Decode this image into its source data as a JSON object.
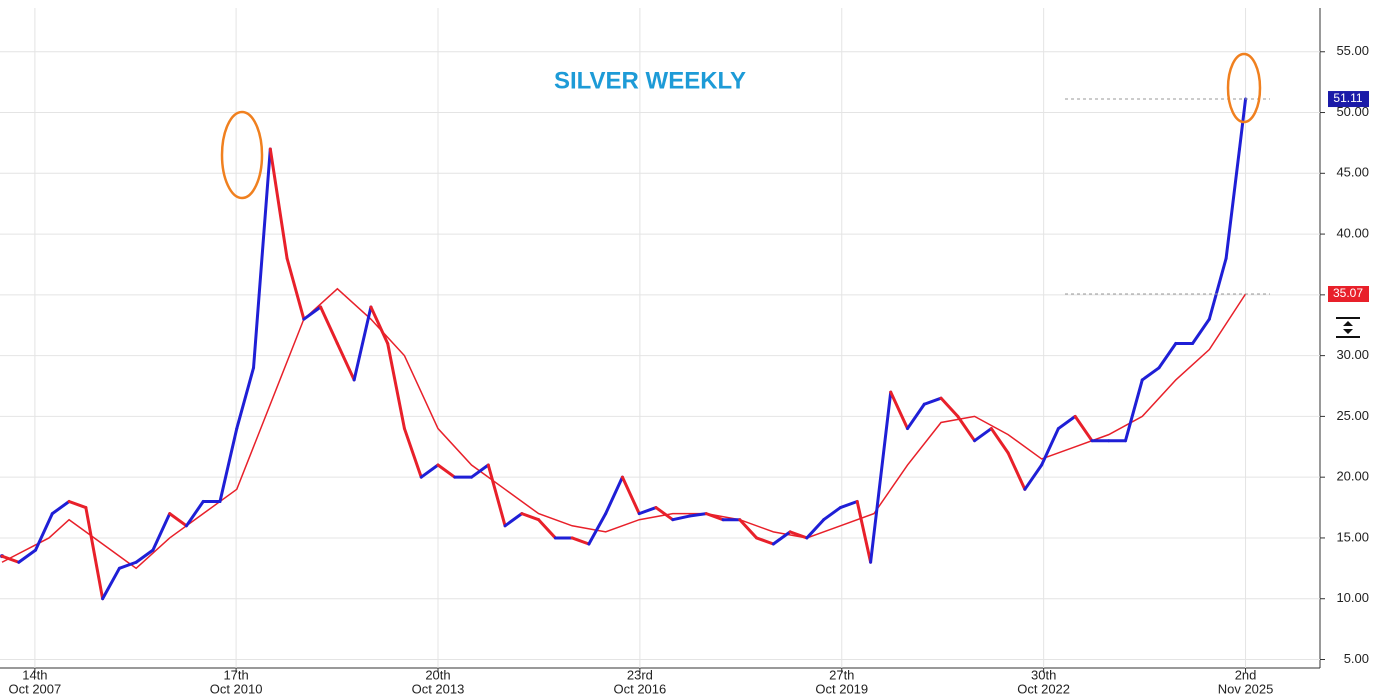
{
  "chart_data": {
    "type": "line",
    "title": "SILVER WEEKLY",
    "xlim": [
      2007.27,
      2026.95
    ],
    "ylim": [
      4.3,
      58.6
    ],
    "xticks": [
      {
        "value": 2007.79,
        "label": [
          "14th",
          "Oct 2007"
        ]
      },
      {
        "value": 2010.79,
        "label": [
          "17th",
          "Oct 2010"
        ]
      },
      {
        "value": 2013.8,
        "label": [
          "20th",
          "Oct 2013"
        ]
      },
      {
        "value": 2016.81,
        "label": [
          "23rd",
          "Oct 2016"
        ]
      },
      {
        "value": 2019.82,
        "label": [
          "27th",
          "Oct 2019"
        ]
      },
      {
        "value": 2022.83,
        "label": [
          "30th",
          "Oct 2022"
        ]
      },
      {
        "value": 2025.84,
        "label": [
          "2nd",
          "Nov 2025"
        ]
      }
    ],
    "yticks": [
      {
        "value": 5,
        "label": "5.00"
      },
      {
        "value": 10,
        "label": "10.00"
      },
      {
        "value": 15,
        "label": "15.00"
      },
      {
        "value": 20,
        "label": "20.00"
      },
      {
        "value": 25,
        "label": "25.00"
      },
      {
        "value": 30,
        "label": "30.00"
      },
      {
        "value": 35,
        "label": "35.00"
      },
      {
        "value": 40,
        "label": "40.00"
      },
      {
        "value": 45,
        "label": "45.00"
      },
      {
        "value": 50,
        "label": "50.00"
      },
      {
        "value": 55,
        "label": "55.00"
      }
    ],
    "grid": true,
    "series": [
      {
        "colors": [
          "#1f1fd6",
          "#e8202a"
        ],
        "x": [
          2007.3,
          2007.55,
          2007.8,
          2008.05,
          2008.3,
          2008.55,
          2008.8,
          2009.05,
          2009.3,
          2009.55,
          2009.8,
          2010.05,
          2010.3,
          2010.55,
          2010.8,
          2011.05,
          2011.3,
          2011.55,
          2011.8,
          2012.05,
          2012.3,
          2012.55,
          2012.8,
          2013.05,
          2013.3,
          2013.55,
          2013.8,
          2014.05,
          2014.3,
          2014.55,
          2014.8,
          2015.05,
          2015.3,
          2015.55,
          2015.8,
          2016.05,
          2016.3,
          2016.55,
          2016.8,
          2017.05,
          2017.3,
          2017.55,
          2017.8,
          2018.05,
          2018.3,
          2018.55,
          2018.8,
          2019.05,
          2019.3,
          2019.55,
          2019.8,
          2020.05,
          2020.25,
          2020.55,
          2020.8,
          2021.05,
          2021.3,
          2021.55,
          2021.8,
          2022.05,
          2022.3,
          2022.55,
          2022.8,
          2023.05,
          2023.3,
          2023.55,
          2023.8,
          2024.05,
          2024.3,
          2024.55,
          2024.8,
          2025.05,
          2025.3,
          2025.55,
          2025.75,
          2025.84
        ],
        "values": [
          13.5,
          13,
          14,
          17,
          18,
          17.5,
          10,
          12.5,
          13,
          14,
          17,
          16,
          18,
          18,
          24,
          29,
          47,
          38,
          33,
          34,
          31,
          28,
          34,
          31,
          24,
          20,
          21,
          20,
          20,
          21,
          16,
          17,
          16.5,
          15,
          15,
          14.5,
          17,
          20,
          17,
          17.5,
          16.5,
          16.8,
          17,
          16.5,
          16.5,
          15,
          14.5,
          15.5,
          15,
          16.5,
          17.5,
          18,
          13,
          27,
          24,
          26,
          26.5,
          25,
          23,
          24,
          22,
          19,
          21,
          24,
          25,
          23,
          23,
          23,
          28,
          29,
          31,
          31,
          33,
          38,
          47,
          51.11
        ]
      },
      {
        "color": "#e8202a",
        "x": [
          2007.3,
          2008.0,
          2008.3,
          2008.8,
          2009.3,
          2009.8,
          2010.3,
          2010.8,
          2011.3,
          2011.8,
          2012.3,
          2012.8,
          2013.3,
          2013.8,
          2014.3,
          2014.8,
          2015.3,
          2015.8,
          2016.3,
          2016.8,
          2017.3,
          2017.8,
          2018.3,
          2018.8,
          2019.3,
          2019.8,
          2020.3,
          2020.8,
          2021.3,
          2021.8,
          2022.3,
          2022.8,
          2023.3,
          2023.8,
          2024.3,
          2024.8,
          2025.3,
          2025.84
        ],
        "values": [
          13,
          15,
          16.5,
          14.5,
          12.5,
          15,
          17,
          19,
          26,
          33,
          35.5,
          33,
          30,
          24,
          21,
          19,
          17,
          16,
          15.5,
          16.5,
          17,
          17,
          16.5,
          15.5,
          15,
          16,
          17,
          21,
          24.5,
          25,
          23.5,
          21.5,
          22.5,
          23.5,
          25,
          28,
          30.5,
          35.07
        ]
      }
    ],
    "last_labels": [
      {
        "value": 51.11,
        "color": "#1a1aa8"
      },
      {
        "value": 35.07,
        "color": "#e8202a"
      }
    ]
  }
}
